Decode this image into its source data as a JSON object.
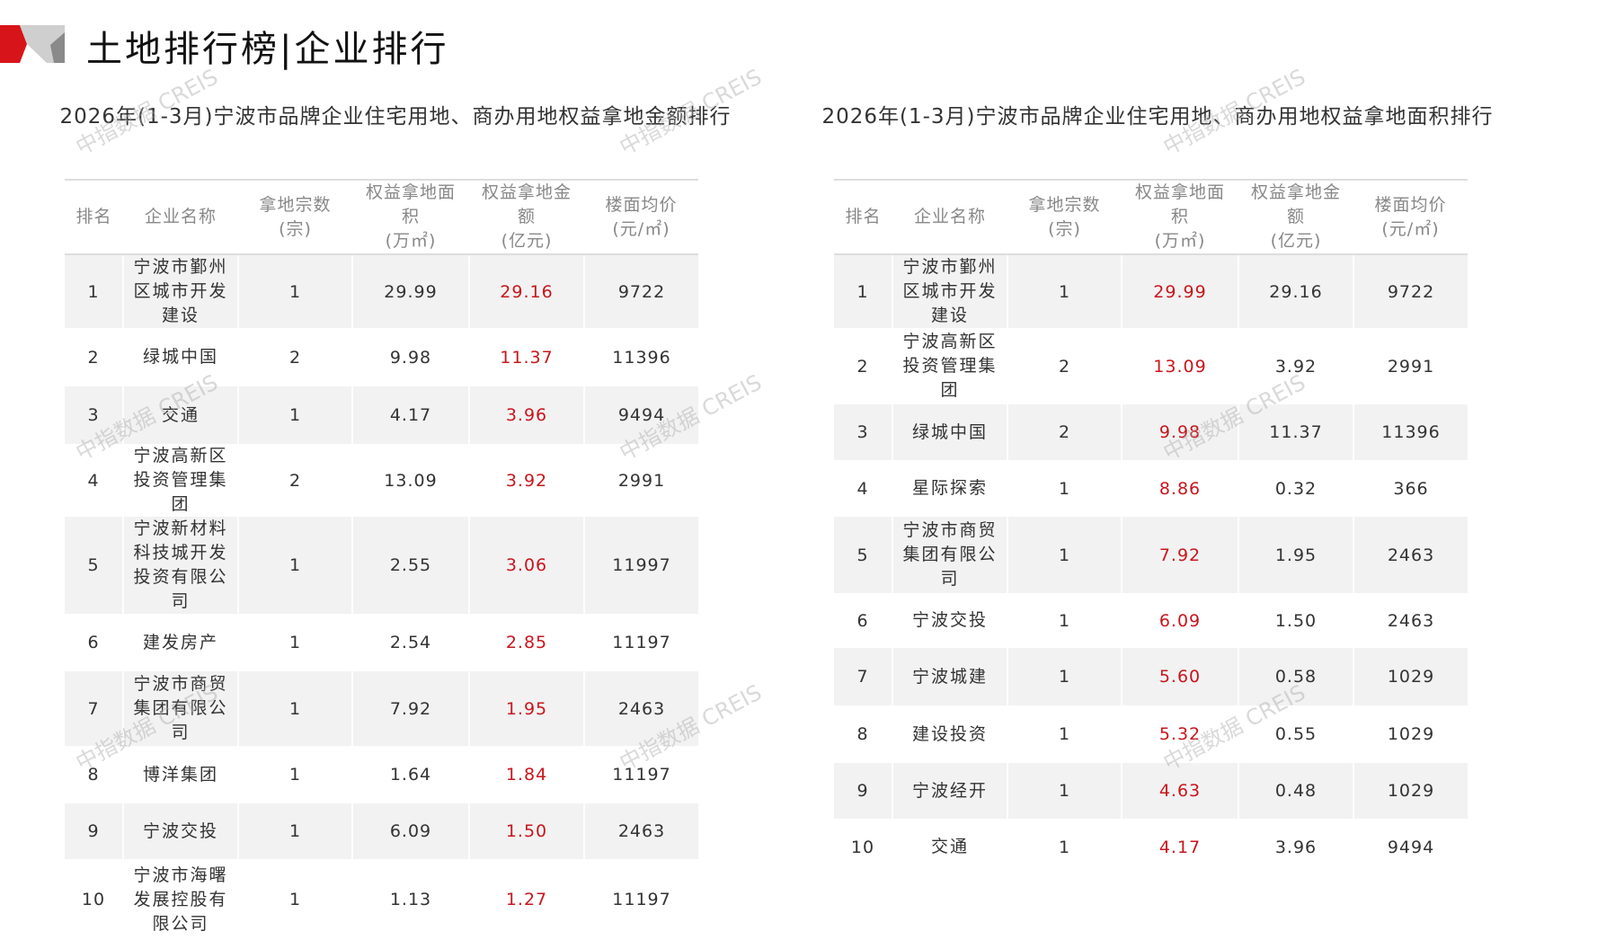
{
  "header": {
    "title": "土地排行榜|企业排行",
    "accent_color": "#d7141a"
  },
  "watermark": "中指数据 CREIS",
  "headers": [
    "排名",
    "企业名称",
    "拿地宗数\n(宗)",
    "权益拿地面\n积\n(万㎡)",
    "权益拿地金\n额\n(亿元)",
    "楼面均价\n(元/㎡)"
  ],
  "left": {
    "title": "2026年(1-3月)宁波市品牌企业住宅用地、商办用地权益拿地金额排行",
    "highlight_col": 4,
    "rows": [
      [
        "1",
        "宁波市鄞州区城市开发建设",
        "1",
        "29.99",
        "29.16",
        "9722"
      ],
      [
        "2",
        "绿城中国",
        "2",
        "9.98",
        "11.37",
        "11396"
      ],
      [
        "3",
        "交通",
        "1",
        "4.17",
        "3.96",
        "9494"
      ],
      [
        "4",
        "宁波高新区投资管理集团",
        "2",
        "13.09",
        "3.92",
        "2991"
      ],
      [
        "5",
        "宁波新材料科技城开发投资有限公司",
        "1",
        "2.55",
        "3.06",
        "11997"
      ],
      [
        "6",
        "建发房产",
        "1",
        "2.54",
        "2.85",
        "11197"
      ],
      [
        "7",
        "宁波市商贸集团有限公司",
        "1",
        "7.92",
        "1.95",
        "2463"
      ],
      [
        "8",
        "博洋集团",
        "1",
        "1.64",
        "1.84",
        "11197"
      ],
      [
        "9",
        "宁波交投",
        "1",
        "6.09",
        "1.50",
        "2463"
      ],
      [
        "10",
        "宁波市海曙发展控股有限公司",
        "1",
        "1.13",
        "1.27",
        "11197"
      ]
    ]
  },
  "right": {
    "title": "2026年(1-3月)宁波市品牌企业住宅用地、商办用地权益拿地面积排行",
    "highlight_col": 3,
    "rows": [
      [
        "1",
        "宁波市鄞州区城市开发建设",
        "1",
        "29.99",
        "29.16",
        "9722"
      ],
      [
        "2",
        "宁波高新区投资管理集团",
        "2",
        "13.09",
        "3.92",
        "2991"
      ],
      [
        "3",
        "绿城中国",
        "2",
        "9.98",
        "11.37",
        "11396"
      ],
      [
        "4",
        "星际探索",
        "1",
        "8.86",
        "0.32",
        "366"
      ],
      [
        "5",
        "宁波市商贸集团有限公司",
        "1",
        "7.92",
        "1.95",
        "2463"
      ],
      [
        "6",
        "宁波交投",
        "1",
        "6.09",
        "1.50",
        "2463"
      ],
      [
        "7",
        "宁波城建",
        "1",
        "5.60",
        "0.58",
        "1029"
      ],
      [
        "8",
        "建设投资",
        "1",
        "5.32",
        "0.55",
        "1029"
      ],
      [
        "9",
        "宁波经开",
        "1",
        "4.63",
        "0.48",
        "1029"
      ],
      [
        "10",
        "交通",
        "1",
        "4.17",
        "3.96",
        "9494"
      ]
    ]
  }
}
